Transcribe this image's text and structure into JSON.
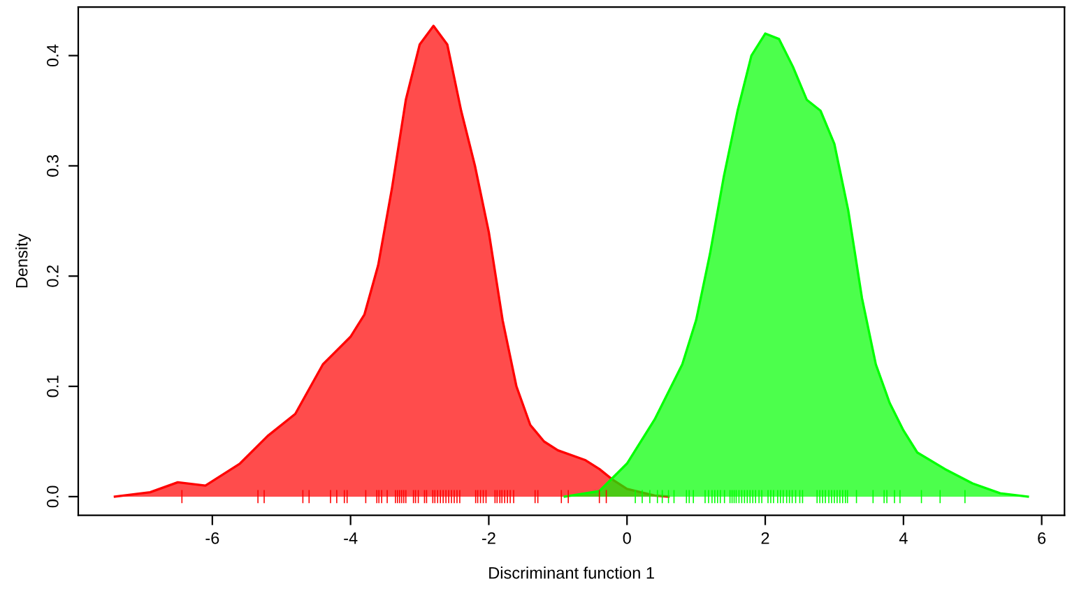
{
  "chart_data": {
    "type": "area",
    "xlabel": "Discriminant function 1",
    "ylabel": "Density",
    "xlim": [
      -7.94,
      6.33
    ],
    "ylim": [
      -0.017,
      0.444
    ],
    "xticks": [
      -6,
      -4,
      -2,
      0,
      2,
      4,
      6
    ],
    "yticks": [
      {
        "value": 0,
        "label": "0.0"
      },
      0.1,
      0.2,
      0.3,
      0.4
    ],
    "grid": false,
    "series": [
      {
        "color": "#ff0000",
        "x": [
          -7.41,
          -6.9,
          -6.5,
          -6.1,
          -5.6,
          -5.2,
          -4.8,
          -4.4,
          -4.0,
          -3.8,
          -3.6,
          -3.4,
          -3.2,
          -3.0,
          -2.8,
          -2.6,
          -2.4,
          -2.2,
          -2.0,
          -1.8,
          -1.6,
          -1.4,
          -1.2,
          -1.0,
          -0.6,
          -0.4,
          -0.2,
          0.0,
          0.4,
          0.6
        ],
        "values": [
          0,
          0.004,
          0.013,
          0.01,
          0.03,
          0.055,
          0.075,
          0.12,
          0.145,
          0.165,
          0.21,
          0.28,
          0.36,
          0.41,
          0.427,
          0.41,
          0.35,
          0.3,
          0.24,
          0.16,
          0.1,
          0.065,
          0.05,
          0.042,
          0.033,
          0.025,
          0.015,
          0.007,
          0.001,
          0
        ]
      },
      {
        "color": "#00ff00",
        "x": [
          -0.9,
          -0.4,
          0.0,
          0.4,
          0.8,
          1.0,
          1.2,
          1.4,
          1.6,
          1.8,
          2.0,
          2.2,
          2.4,
          2.6,
          2.8,
          3.0,
          3.2,
          3.4,
          3.6,
          3.8,
          4.0,
          4.2,
          4.6,
          5.0,
          5.4,
          5.8
        ],
        "values": [
          0,
          0.005,
          0.03,
          0.07,
          0.12,
          0.16,
          0.22,
          0.29,
          0.35,
          0.4,
          0.42,
          0.415,
          0.39,
          0.36,
          0.35,
          0.32,
          0.26,
          0.18,
          0.12,
          0.085,
          0.06,
          0.04,
          0.025,
          0.012,
          0.003,
          0
        ]
      },
      {
        "type": "bar",
        "color": "#ff0000",
        "x": [
          -6.44,
          -5.34,
          -5.25,
          -4.69,
          -4.6,
          -4.29,
          -4.2,
          -4.09,
          -4.05,
          -3.78,
          -3.62,
          -3.59,
          -3.55,
          -3.47,
          -3.35,
          -3.32,
          -3.29,
          -3.26,
          -3.23,
          -3.2,
          -3.09,
          -3.06,
          -3.02,
          -2.93,
          -2.9,
          -2.81,
          -2.78,
          -2.74,
          -2.7,
          -2.66,
          -2.62,
          -2.58,
          -2.54,
          -2.5,
          -2.46,
          -2.42,
          -2.19,
          -2.16,
          -2.12,
          -2.08,
          -2.04,
          -1.91,
          -1.88,
          -1.84,
          -1.81,
          -1.77,
          -1.73,
          -1.69,
          -1.64,
          -1.33,
          -1.29,
          -0.95,
          -0.85,
          -0.4,
          -0.3
        ],
        "values": [
          0.012,
          0.012,
          0.012,
          0.012,
          0.012,
          0.012,
          0.012,
          0.012,
          0.012,
          0.012,
          0.012,
          0.012,
          0.012,
          0.012,
          0.012,
          0.012,
          0.012,
          0.012,
          0.012,
          0.012,
          0.012,
          0.012,
          0.012,
          0.012,
          0.012,
          0.012,
          0.012,
          0.012,
          0.012,
          0.012,
          0.012,
          0.012,
          0.012,
          0.012,
          0.012,
          0.012,
          0.012,
          0.012,
          0.012,
          0.012,
          0.012,
          0.012,
          0.012,
          0.012,
          0.012,
          0.012,
          0.012,
          0.012,
          0.012,
          0.012,
          0.012,
          0.012,
          0.012,
          0.012,
          0.012
        ],
        "base": [
          -0.006,
          -0.006,
          -0.006,
          -0.006,
          -0.006,
          -0.006,
          -0.006,
          -0.006,
          -0.006,
          -0.006,
          -0.006,
          -0.006,
          -0.006,
          -0.006,
          -0.006,
          -0.006,
          -0.006,
          -0.006,
          -0.006,
          -0.006,
          -0.006,
          -0.006,
          -0.006,
          -0.006,
          -0.006,
          -0.006,
          -0.006,
          -0.006,
          -0.006,
          -0.006,
          -0.006,
          -0.006,
          -0.006,
          -0.006,
          -0.006,
          -0.006,
          -0.006,
          -0.006,
          -0.006,
          -0.006,
          -0.006,
          -0.006,
          -0.006,
          -0.006,
          -0.006,
          -0.006,
          -0.006,
          -0.006,
          -0.006,
          -0.006,
          -0.006,
          -0.006,
          -0.006,
          -0.006,
          -0.006
        ]
      },
      {
        "type": "bar",
        "color": "#00ff00",
        "x": [
          0.12,
          0.22,
          0.33,
          0.44,
          0.51,
          0.6,
          0.68,
          0.86,
          0.9,
          0.96,
          1.13,
          1.18,
          1.23,
          1.27,
          1.31,
          1.35,
          1.41,
          1.49,
          1.52,
          1.55,
          1.58,
          1.62,
          1.66,
          1.7,
          1.74,
          1.78,
          1.82,
          1.86,
          1.91,
          1.95,
          2.04,
          2.08,
          2.12,
          2.18,
          2.22,
          2.26,
          2.31,
          2.35,
          2.39,
          2.44,
          2.5,
          2.54,
          2.75,
          2.79,
          2.83,
          2.87,
          2.92,
          2.96,
          3.0,
          3.04,
          3.08,
          3.12,
          3.16,
          3.19,
          3.32,
          3.56,
          3.72,
          3.76,
          3.87,
          3.95,
          4.26,
          4.53,
          4.89
        ],
        "values": [
          0.012,
          0.012,
          0.012,
          0.012,
          0.012,
          0.012,
          0.012,
          0.012,
          0.012,
          0.012,
          0.012,
          0.012,
          0.012,
          0.012,
          0.012,
          0.012,
          0.012,
          0.012,
          0.012,
          0.012,
          0.012,
          0.012,
          0.012,
          0.012,
          0.012,
          0.012,
          0.012,
          0.012,
          0.012,
          0.012,
          0.012,
          0.012,
          0.012,
          0.012,
          0.012,
          0.012,
          0.012,
          0.012,
          0.012,
          0.012,
          0.012,
          0.012,
          0.012,
          0.012,
          0.012,
          0.012,
          0.012,
          0.012,
          0.012,
          0.012,
          0.012,
          0.012,
          0.012,
          0.012,
          0.012,
          0.012,
          0.012,
          0.012,
          0.012,
          0.012,
          0.012,
          0.012,
          0.012
        ],
        "base": [
          -0.006,
          -0.006,
          -0.006,
          -0.006,
          -0.006,
          -0.006,
          -0.006,
          -0.006,
          -0.006,
          -0.006,
          -0.006,
          -0.006,
          -0.006,
          -0.006,
          -0.006,
          -0.006,
          -0.006,
          -0.006,
          -0.006,
          -0.006,
          -0.006,
          -0.006,
          -0.006,
          -0.006,
          -0.006,
          -0.006,
          -0.006,
          -0.006,
          -0.006,
          -0.006,
          -0.006,
          -0.006,
          -0.006,
          -0.006,
          -0.006,
          -0.006,
          -0.006,
          -0.006,
          -0.006,
          -0.006,
          -0.006,
          -0.006,
          -0.006,
          -0.006,
          -0.006,
          -0.006,
          -0.006,
          -0.006,
          -0.006,
          -0.006,
          -0.006,
          -0.006,
          -0.006,
          -0.006,
          -0.006,
          -0.006,
          -0.006,
          -0.006,
          -0.006,
          -0.006,
          -0.006,
          -0.006,
          -0.006
        ]
      }
    ]
  }
}
